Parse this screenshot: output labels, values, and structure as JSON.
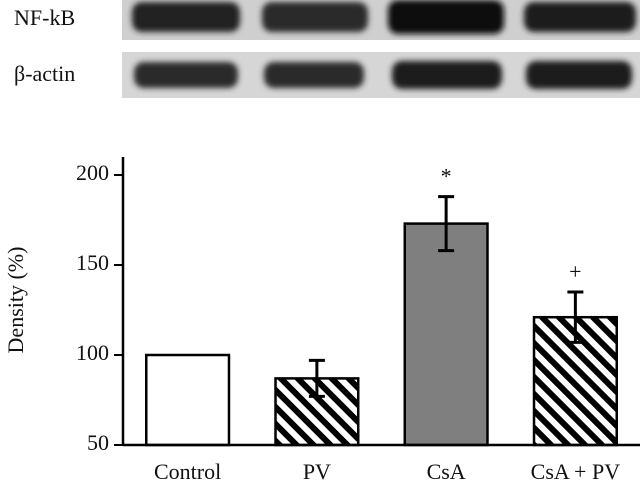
{
  "blot_labels": [
    "NF-kB",
    "β-actin"
  ],
  "chart_data": {
    "type": "bar",
    "y_label": "Density (%)",
    "categories": [
      "Control",
      "PV",
      "CsA",
      "CsA + PV"
    ],
    "values": [
      100,
      87,
      173,
      121
    ],
    "errors": [
      null,
      10,
      15,
      14
    ],
    "colors": [
      "#ffffff",
      "#000000",
      "#7f7f7f",
      "#000000"
    ],
    "hatch": [
      false,
      true,
      false,
      true
    ],
    "bar_annotations": [
      null,
      null,
      "*",
      "+"
    ],
    "ylim": [
      50,
      210
    ],
    "yticks": [
      50,
      100,
      150,
      200
    ]
  }
}
